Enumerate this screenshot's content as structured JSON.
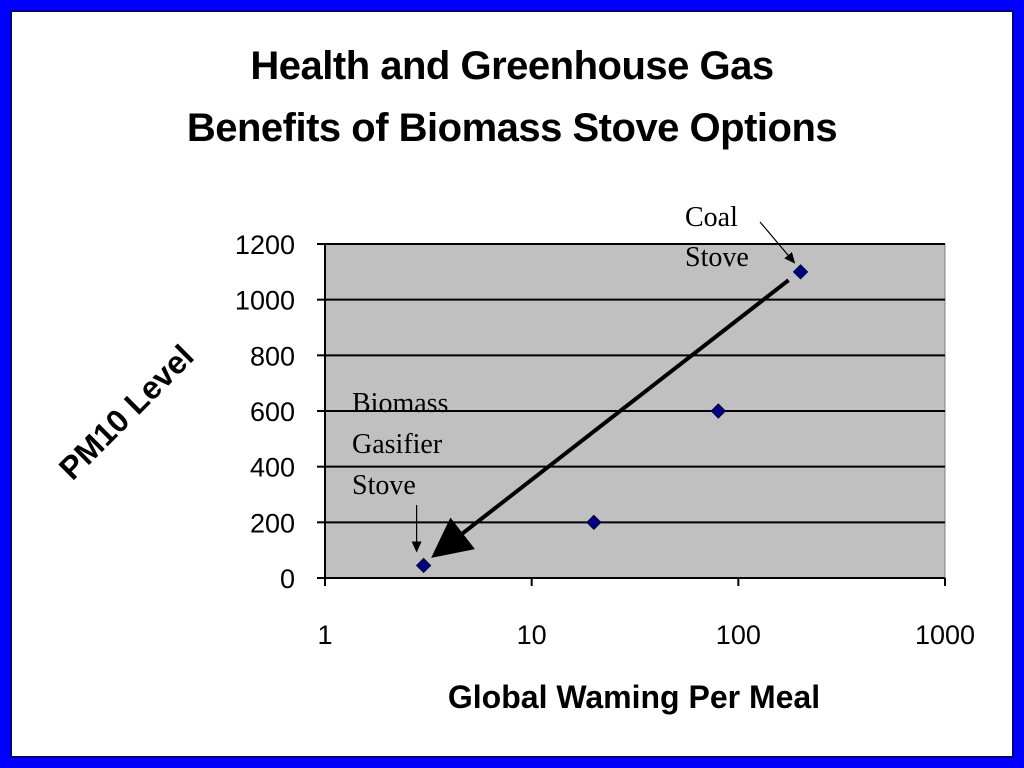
{
  "chart_data": {
    "type": "scatter",
    "title": [
      "Health and Greenhouse Gas",
      "Benefits of Biomass Stove Options"
    ],
    "xlabel": "Global Waming Per Meal",
    "ylabel": "PM10 Level",
    "x_scale": "log",
    "xlim": [
      1,
      1000
    ],
    "ylim": [
      0,
      1200
    ],
    "x_ticks": [
      "1",
      "10",
      "100",
      "1000"
    ],
    "y_ticks": [
      "0",
      "200",
      "400",
      "600",
      "800",
      "1000",
      "1200"
    ],
    "grid": "horizontal",
    "plot_background": "#c0c0c0",
    "marker_color": "#000080",
    "series": [
      {
        "points": [
          {
            "x": 3,
            "y": 45
          },
          {
            "x": 20,
            "y": 200
          },
          {
            "x": 80,
            "y": 600
          },
          {
            "x": 200,
            "y": 1100
          }
        ]
      }
    ],
    "annotations": [
      {
        "lines": [
          "Coal",
          "Stove"
        ],
        "x": 200,
        "y": 1100
      },
      {
        "lines": [
          "Biomass",
          "Gasifier",
          "Stove"
        ],
        "x": 3,
        "y": 45
      }
    ],
    "trend_arrow": {
      "from": {
        "x": 175,
        "y": 1070
      },
      "to": {
        "x": 3.5,
        "y": 90
      }
    }
  },
  "colors": {
    "frame": "#0000ff",
    "background": "#ffffff"
  }
}
